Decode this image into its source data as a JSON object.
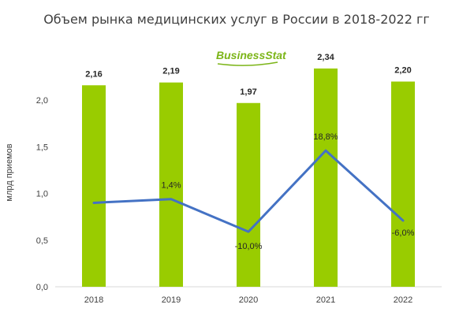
{
  "chart_data": {
    "type": "bar",
    "title": "Объем рынка медицинских услуг в России в 2018-2022 гг",
    "ylabel": "млрд приемов",
    "xlabel": "",
    "categories": [
      "2018",
      "2019",
      "2020",
      "2021",
      "2022"
    ],
    "values": [
      2.16,
      2.19,
      1.97,
      2.34,
      2.2
    ],
    "value_labels": [
      "2,16",
      "2,19",
      "1,97",
      "2,34",
      "2,20"
    ],
    "ylim": [
      0,
      2.5
    ],
    "y_ticks": [
      0,
      0.5,
      1.0,
      1.5,
      2.0
    ],
    "y_tick_labels": [
      "0,0",
      "0,5",
      "1,0",
      "1,5",
      "2,0"
    ],
    "grid": false,
    "bar_color": "#99cc00",
    "line_series": {
      "type": "line",
      "color": "#4472c4",
      "values": [
        0.9,
        0.94,
        0.59,
        1.46,
        0.71
      ],
      "labels": [
        "",
        "1,4%",
        "-10,0%",
        "18,8%",
        "-6,0%"
      ]
    },
    "watermark": "BusinessStat"
  }
}
